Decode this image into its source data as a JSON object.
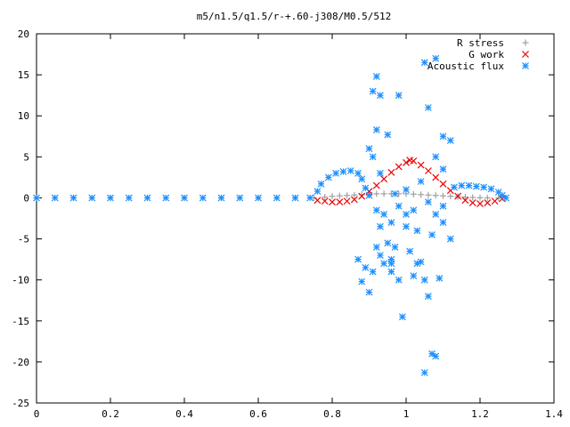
{
  "chart_data": {
    "type": "scatter",
    "title": "m5/n1.5/q1.5/r-+.60-j308/M0.5/512",
    "xlabel": "",
    "ylabel": "",
    "xlim": [
      0,
      1.4
    ],
    "ylim": [
      -25,
      20
    ],
    "xticks": [
      0,
      0.2,
      0.4,
      0.6,
      0.8,
      1,
      1.2,
      1.4
    ],
    "xtick_labels": [
      "0",
      "0.2",
      "0.4",
      "0.6",
      "0.8",
      "1",
      "1.2",
      "1.4"
    ],
    "yticks": [
      -25,
      -20,
      -15,
      -10,
      -5,
      0,
      5,
      10,
      15,
      20
    ],
    "ytick_labels": [
      "-25",
      "-20",
      "-15",
      "-10",
      "-5",
      "0",
      "5",
      "10",
      "15",
      "20"
    ],
    "grid": false,
    "legend_position": "top-right",
    "series": [
      {
        "name": "R stress",
        "color": "#a0a0a0",
        "marker": "plus",
        "points": [
          [
            0.0,
            0
          ],
          [
            0.1,
            0
          ],
          [
            0.2,
            0
          ],
          [
            0.3,
            0
          ],
          [
            0.4,
            0
          ],
          [
            0.5,
            0
          ],
          [
            0.6,
            0
          ],
          [
            0.7,
            0
          ],
          [
            0.75,
            0
          ],
          [
            0.78,
            0.1
          ],
          [
            0.8,
            0.2
          ],
          [
            0.82,
            0.25
          ],
          [
            0.84,
            0.3
          ],
          [
            0.86,
            0.35
          ],
          [
            0.88,
            0.4
          ],
          [
            0.9,
            0.45
          ],
          [
            0.92,
            0.5
          ],
          [
            0.94,
            0.5
          ],
          [
            0.96,
            0.5
          ],
          [
            0.98,
            0.5
          ],
          [
            1.0,
            0.5
          ],
          [
            1.02,
            0.45
          ],
          [
            1.04,
            0.4
          ],
          [
            1.06,
            0.35
          ],
          [
            1.08,
            0.3
          ],
          [
            1.1,
            0.25
          ],
          [
            1.12,
            0.2
          ],
          [
            1.14,
            0.15
          ],
          [
            1.16,
            0.1
          ],
          [
            1.18,
            0.05
          ],
          [
            1.2,
            0.02
          ],
          [
            1.22,
            0
          ],
          [
            1.25,
            0
          ]
        ]
      },
      {
        "name": "G work",
        "color": "#ee0000",
        "marker": "cross",
        "points": [
          [
            0.76,
            -0.3
          ],
          [
            0.78,
            -0.4
          ],
          [
            0.8,
            -0.5
          ],
          [
            0.82,
            -0.5
          ],
          [
            0.84,
            -0.4
          ],
          [
            0.86,
            -0.2
          ],
          [
            0.88,
            0.2
          ],
          [
            0.9,
            0.8
          ],
          [
            0.92,
            1.5
          ],
          [
            0.94,
            2.3
          ],
          [
            0.96,
            3.1
          ],
          [
            0.98,
            3.8
          ],
          [
            1.0,
            4.3
          ],
          [
            1.01,
            4.6
          ],
          [
            1.02,
            4.5
          ],
          [
            1.04,
            4.0
          ],
          [
            1.06,
            3.3
          ],
          [
            1.08,
            2.5
          ],
          [
            1.1,
            1.7
          ],
          [
            1.12,
            0.9
          ],
          [
            1.14,
            0.2
          ],
          [
            1.16,
            -0.3
          ],
          [
            1.18,
            -0.6
          ],
          [
            1.2,
            -0.7
          ],
          [
            1.22,
            -0.6
          ],
          [
            1.24,
            -0.4
          ],
          [
            1.26,
            -0.1
          ]
        ]
      },
      {
        "name": "Acoustic flux",
        "color": "#1e90ff",
        "marker": "star",
        "points": [
          [
            0.0,
            0
          ],
          [
            0.05,
            0
          ],
          [
            0.1,
            0
          ],
          [
            0.15,
            0
          ],
          [
            0.2,
            0
          ],
          [
            0.25,
            0
          ],
          [
            0.3,
            0
          ],
          [
            0.35,
            0
          ],
          [
            0.4,
            0
          ],
          [
            0.45,
            0
          ],
          [
            0.5,
            0
          ],
          [
            0.55,
            0
          ],
          [
            0.6,
            0
          ],
          [
            0.65,
            0
          ],
          [
            0.7,
            0
          ],
          [
            0.74,
            0
          ],
          [
            0.76,
            0.8
          ],
          [
            0.77,
            1.7
          ],
          [
            0.79,
            2.5
          ],
          [
            0.81,
            3.0
          ],
          [
            0.83,
            3.2
          ],
          [
            0.85,
            3.3
          ],
          [
            0.87,
            3.0
          ],
          [
            0.88,
            2.3
          ],
          [
            0.89,
            1.2
          ],
          [
            0.9,
            0.3
          ],
          [
            0.91,
            5.0
          ],
          [
            0.92,
            8.3
          ],
          [
            0.9,
            6.0
          ],
          [
            0.93,
            3.0
          ],
          [
            0.94,
            -2.0
          ],
          [
            0.95,
            7.7
          ],
          [
            0.96,
            -3.0
          ],
          [
            0.92,
            -1.5
          ],
          [
            0.93,
            -3.5
          ],
          [
            0.95,
            -5.5
          ],
          [
            0.96,
            -8.0
          ],
          [
            0.97,
            -6.0
          ],
          [
            0.98,
            -10.0
          ],
          [
            0.99,
            -14.5
          ],
          [
            1.0,
            -3.5
          ],
          [
            1.01,
            -6.5
          ],
          [
            1.02,
            -9.5
          ],
          [
            1.03,
            -4.0
          ],
          [
            1.04,
            -7.8
          ],
          [
            1.05,
            -10.0
          ],
          [
            1.06,
            -12.0
          ],
          [
            1.07,
            -19.0
          ],
          [
            1.08,
            -19.3
          ],
          [
            1.05,
            -21.3
          ],
          [
            0.92,
            -6.0
          ],
          [
            0.94,
            -8.0
          ],
          [
            0.96,
            -9.0
          ],
          [
            0.98,
            -1.0
          ],
          [
            1.0,
            -2.0
          ],
          [
            1.02,
            -1.5
          ],
          [
            0.91,
            13.0
          ],
          [
            0.92,
            14.8
          ],
          [
            0.93,
            12.5
          ],
          [
            0.98,
            12.5
          ],
          [
            1.05,
            16.5
          ],
          [
            1.08,
            17.0
          ],
          [
            1.06,
            11.0
          ],
          [
            1.1,
            7.5
          ],
          [
            1.12,
            7.0
          ],
          [
            1.08,
            5.0
          ],
          [
            1.1,
            3.5
          ],
          [
            1.04,
            2.0
          ],
          [
            1.0,
            1.0
          ],
          [
            0.97,
            0.5
          ],
          [
            1.06,
            -0.5
          ],
          [
            1.08,
            -2.0
          ],
          [
            1.1,
            -3.0
          ],
          [
            1.12,
            -5.0
          ],
          [
            1.1,
            -1.0
          ],
          [
            0.87,
            -7.5
          ],
          [
            0.88,
            -10.2
          ],
          [
            0.89,
            -8.5
          ],
          [
            0.9,
            -11.5
          ],
          [
            0.91,
            -9.0
          ],
          [
            0.93,
            -7.0
          ],
          [
            0.96,
            -7.5
          ],
          [
            1.03,
            -8.0
          ],
          [
            1.07,
            -4.5
          ],
          [
            1.09,
            -9.8
          ],
          [
            1.13,
            1.3
          ],
          [
            1.15,
            1.5
          ],
          [
            1.17,
            1.5
          ],
          [
            1.19,
            1.4
          ],
          [
            1.21,
            1.3
          ],
          [
            1.23,
            1.1
          ],
          [
            1.25,
            0.7
          ],
          [
            1.26,
            0.3
          ],
          [
            1.27,
            0
          ]
        ]
      }
    ]
  }
}
